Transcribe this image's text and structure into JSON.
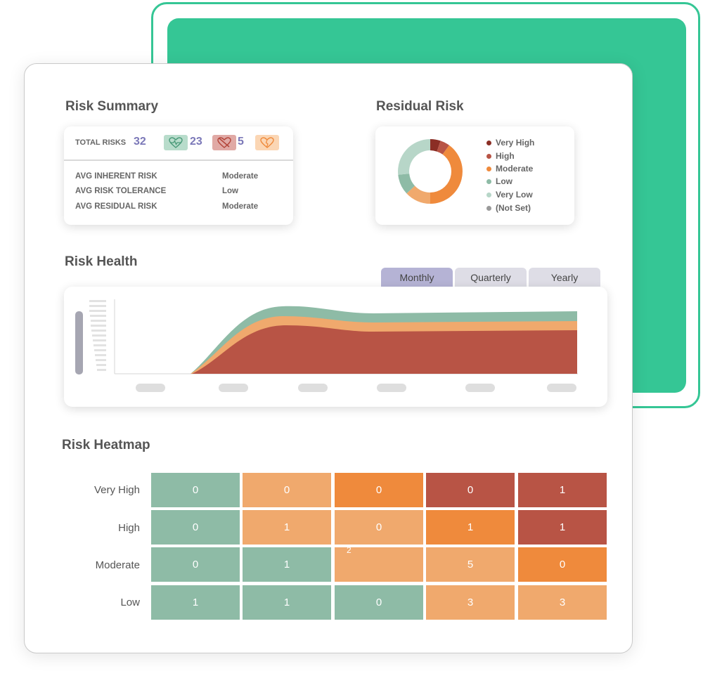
{
  "colors": {
    "accent_green": "#35c695",
    "very_high": "#8b2e25",
    "high": "#b85445",
    "moderate": "#ef8a3c",
    "low_warm": "#f0a96d",
    "low": "#8ebba6",
    "very_low": "#b7d6c8",
    "not_set": "#9a9a9a",
    "link_purple": "#7b78b8"
  },
  "risk_summary": {
    "title": "Risk Summary",
    "total_label": "TOTAL RISKS",
    "total_value": "32",
    "badges": [
      {
        "icon": "heart-pulse-icon",
        "count": "23"
      },
      {
        "icon": "heart-crossed-icon",
        "count": "5"
      },
      {
        "icon": "heart-broken-icon",
        "count": ""
      }
    ],
    "rows": [
      {
        "label": "AVG INHERENT RISK",
        "value": "Moderate"
      },
      {
        "label": "AVG RISK TOLERANCE",
        "value": "Low"
      },
      {
        "label": "AVG RESIDUAL RISK",
        "value": "Moderate"
      }
    ]
  },
  "residual_risk": {
    "title": "Residual Risk",
    "legend": [
      "Very High",
      "High",
      "Moderate",
      "Low",
      "Very Low",
      "(Not Set)"
    ]
  },
  "risk_health": {
    "title": "Risk Health",
    "tabs": [
      {
        "label": "Monthly",
        "active": true
      },
      {
        "label": "Quarterly",
        "active": false
      },
      {
        "label": "Yearly",
        "active": false
      }
    ]
  },
  "risk_heatmap": {
    "title": "Risk Heatmap",
    "rows": [
      {
        "label": "Very High",
        "cells": [
          "0",
          "0",
          "0",
          "0",
          "1"
        ]
      },
      {
        "label": "High",
        "cells": [
          "0",
          "1",
          "0",
          "1",
          "1"
        ]
      },
      {
        "label": "Moderate",
        "cells": [
          "0",
          "1",
          "",
          "5",
          "0"
        ]
      },
      {
        "label": "Low",
        "cells": [
          "1",
          "1",
          "0",
          "3",
          "3"
        ]
      }
    ],
    "stray_value": "2"
  }
}
